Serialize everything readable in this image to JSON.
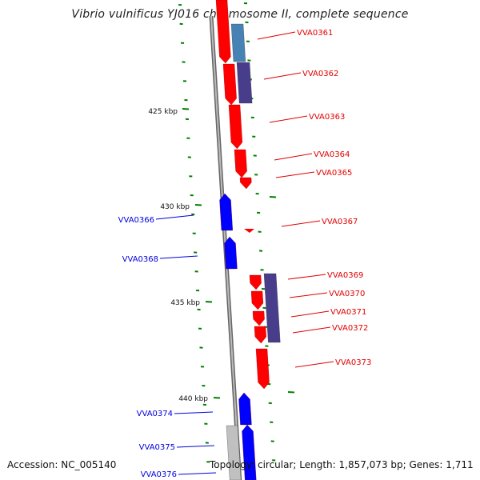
{
  "title": "Vibrio vulnificus YJ016 chromosome II, complete sequence",
  "accession": "Accession: NC_005140",
  "topology": "Topology: circular; Length: 1,857,073 bp; Genes: 1,711",
  "colors": {
    "forward_cds": "#ff0000",
    "reverse_cds": "#0000ff",
    "backbone": "#808080",
    "tick": "#008000",
    "cog_steelblue": "#4682b4",
    "cog_slateblue": "#483d8b",
    "cog_gray": "#c0c0c0"
  },
  "scale_labels": [
    "425 kbp",
    "430 kbp",
    "435 kbp",
    "440 kbp"
  ],
  "forward_genes": [
    "VVA0361",
    "VVA0362",
    "VVA0363",
    "VVA0364",
    "VVA0365",
    "VVA0367",
    "VVA0369",
    "VVA0370",
    "VVA0371",
    "VVA0372",
    "VVA0373"
  ],
  "reverse_genes": [
    "VVA0366",
    "VVA0368",
    "VVA0374",
    "VVA0375",
    "VVA0376"
  ]
}
